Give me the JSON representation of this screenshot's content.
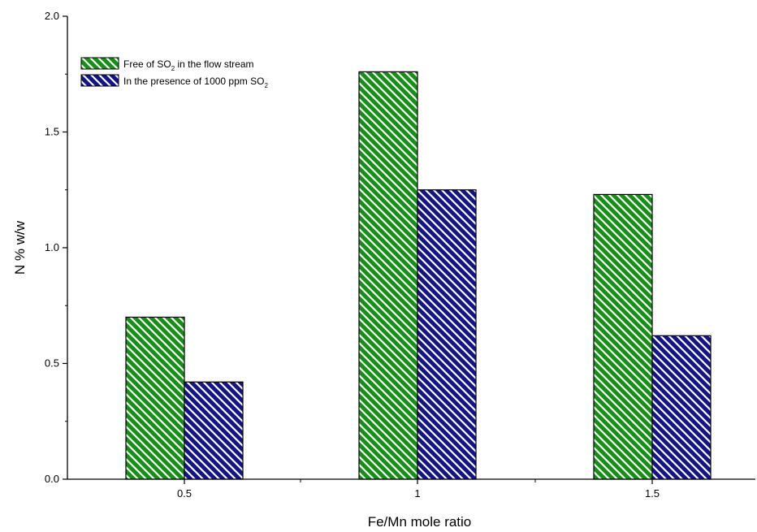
{
  "chart_data": {
    "type": "bar",
    "categories": [
      "0.5",
      "1",
      "1.5"
    ],
    "series": [
      {
        "name": "Free of SO2 in the flow stream",
        "values": [
          0.7,
          1.76,
          1.23
        ],
        "color": "#1a8c1a"
      },
      {
        "name": "In the presence of 1000 ppm SO2",
        "values": [
          0.42,
          1.25,
          0.62
        ],
        "color": "#141482"
      }
    ],
    "legend": [
      {
        "prefix": "Free of SO",
        "sub": "2",
        "suffix": " in the flow stream"
      },
      {
        "prefix": "In the presence of 1000 ppm SO",
        "sub": "2",
        "suffix": ""
      }
    ],
    "xlabel": "Fe/Mn mole ratio",
    "ylabel": "N % w/w",
    "ylim": [
      0,
      2.0
    ],
    "yticks": [
      "0.0",
      "0.5",
      "1.0",
      "1.5",
      "2.0"
    ],
    "grid": false,
    "legend_position": "top-left"
  }
}
